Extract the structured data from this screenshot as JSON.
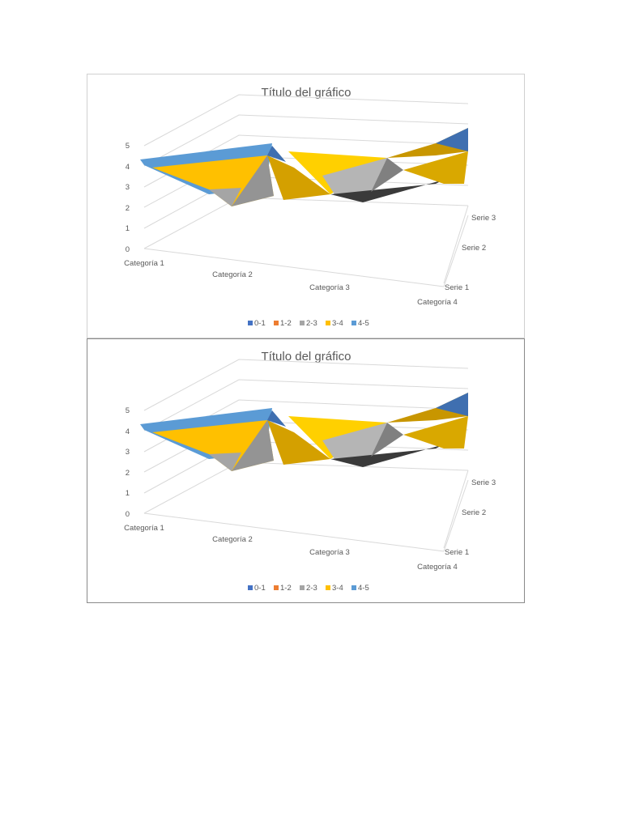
{
  "chart_data": [
    {
      "type": "surface",
      "title": "Título del gráfico",
      "categories": [
        "Categoría 1",
        "Categoría 2",
        "Categoría 3",
        "Categoría 4"
      ],
      "series_names": [
        "Serie 1",
        "Serie 2",
        "Serie 3"
      ],
      "z_ticks": [
        "0",
        "1",
        "2",
        "3",
        "4",
        "5"
      ],
      "zlim": [
        0,
        5
      ],
      "grid": true,
      "legend_position": "bottom",
      "legend": [
        {
          "label": "0-1",
          "color": "#4472c4"
        },
        {
          "label": "1-2",
          "color": "#ed7d31"
        },
        {
          "label": "2-3",
          "color": "#a5a5a5"
        },
        {
          "label": "3-4",
          "color": "#ffc000"
        },
        {
          "label": "4-5",
          "color": "#5b9bd5"
        }
      ]
    },
    {
      "type": "surface",
      "title": "Título del gráfico",
      "categories": [
        "Categoría 1",
        "Categoría 2",
        "Categoría 3",
        "Categoría 4"
      ],
      "series_names": [
        "Serie 1",
        "Serie 2",
        "Serie 3"
      ],
      "z_ticks": [
        "0",
        "1",
        "2",
        "3",
        "4",
        "5"
      ],
      "zlim": [
        0,
        5
      ],
      "grid": true,
      "legend_position": "bottom",
      "legend": [
        {
          "label": "0-1",
          "color": "#4472c4"
        },
        {
          "label": "1-2",
          "color": "#ed7d31"
        },
        {
          "label": "2-3",
          "color": "#a5a5a5"
        },
        {
          "label": "3-4",
          "color": "#ffc000"
        },
        {
          "label": "4-5",
          "color": "#5b9bd5"
        }
      ]
    }
  ]
}
